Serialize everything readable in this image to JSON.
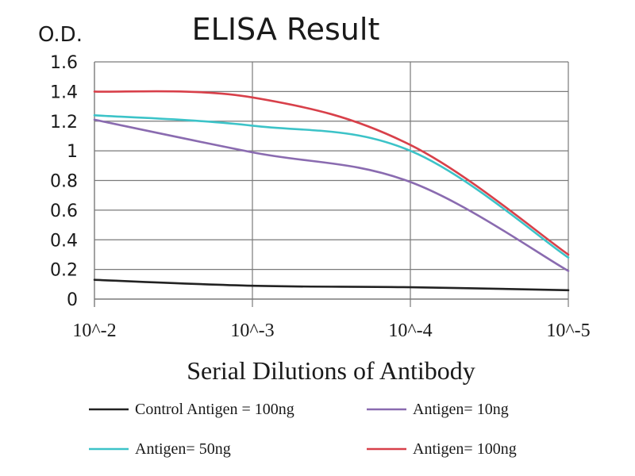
{
  "chart_data": {
    "type": "line",
    "title": "ELISA Result",
    "ylabel": "O.D.",
    "xlabel": "Serial Dilutions of Antibody",
    "categories": [
      "10^-2",
      "10^-3",
      "10^-4",
      "10^-5"
    ],
    "ylim": [
      0,
      1.6
    ],
    "yticks": [
      "0",
      "0.2",
      "0.4",
      "0.6",
      "0.8",
      "1",
      "1.2",
      "1.4",
      "1.6"
    ],
    "grid": true,
    "legend_position": "bottom",
    "series": [
      {
        "name": "Control Antigen = 100ng",
        "color": "#222222",
        "values": [
          0.13,
          0.09,
          0.08,
          0.06
        ]
      },
      {
        "name": "Antigen= 10ng",
        "color": "#8a6bb0",
        "values": [
          1.21,
          0.99,
          0.79,
          0.19
        ]
      },
      {
        "name": "Antigen= 50ng",
        "color": "#3cc3c8",
        "values": [
          1.24,
          1.17,
          1.0,
          0.28
        ]
      },
      {
        "name": "Antigen= 100ng",
        "color": "#d8404a",
        "values": [
          1.4,
          1.36,
          1.04,
          0.3
        ]
      }
    ]
  }
}
